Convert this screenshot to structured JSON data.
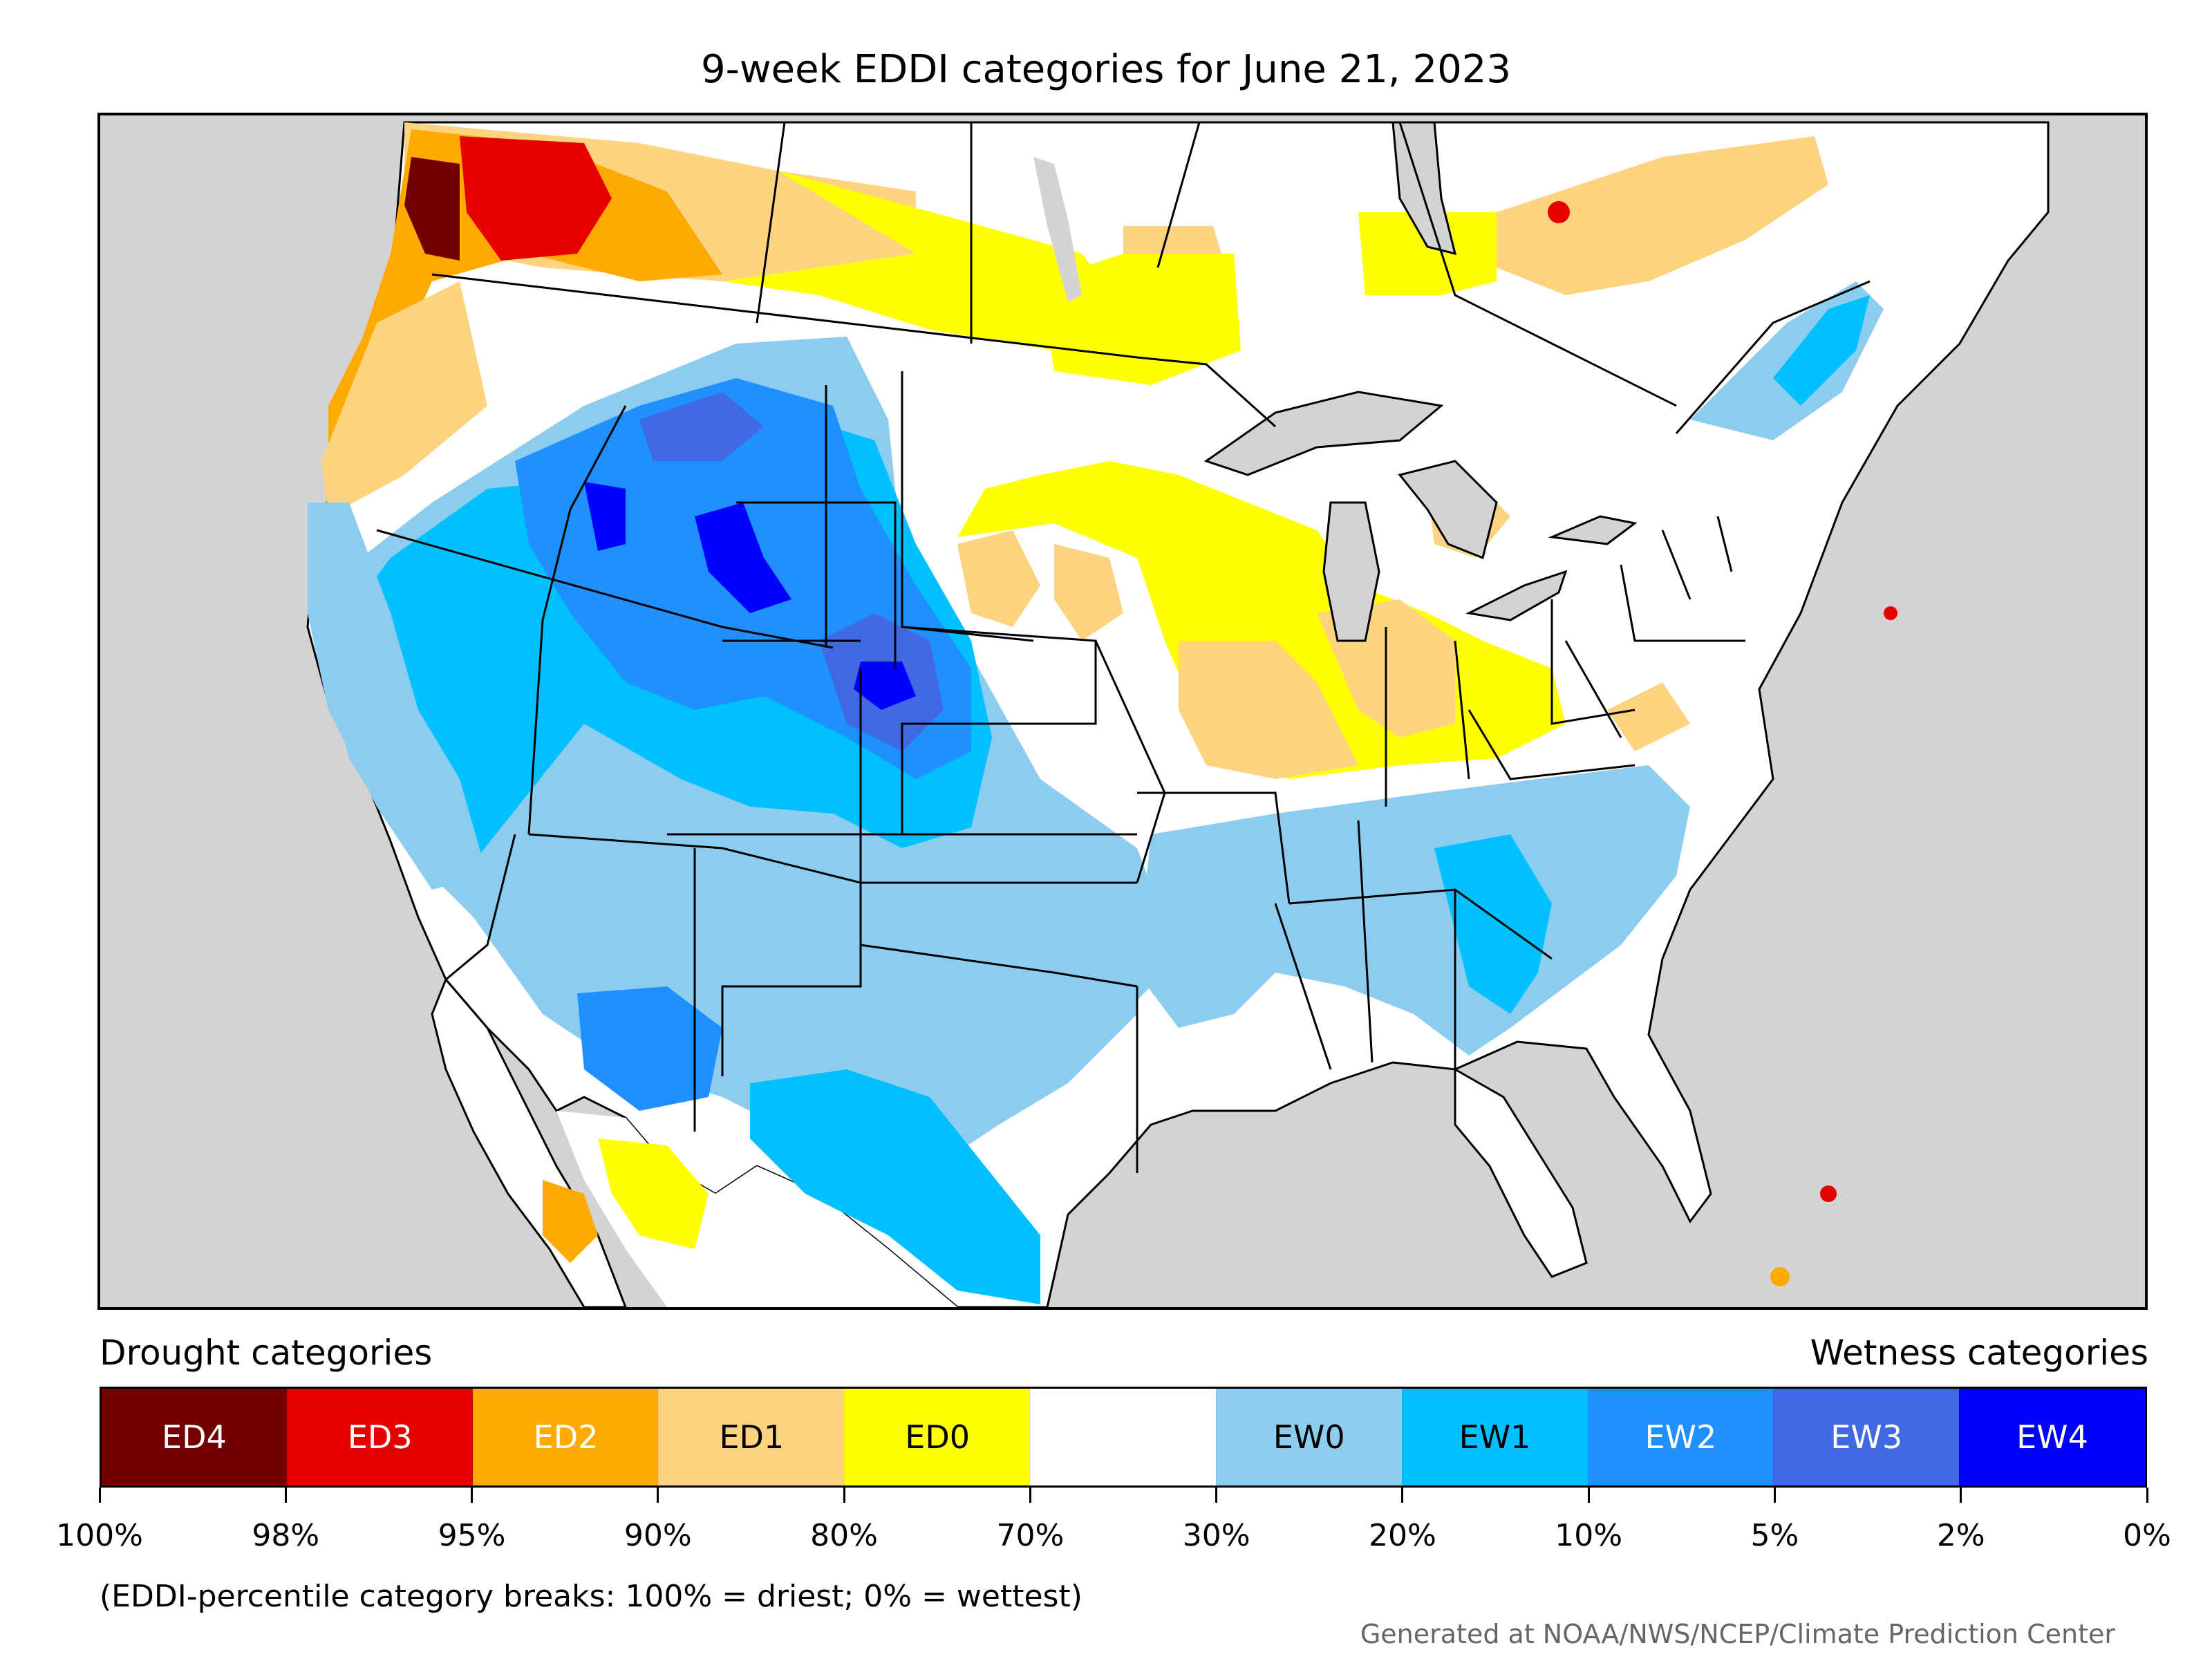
{
  "title": "9-week EDDI categories for June 21, 2023",
  "legend": {
    "drought_heading": "Drought categories",
    "wetness_heading": "Wetness categories",
    "categories": [
      {
        "label": "ED4",
        "color": "#730000",
        "text_color": "#ffffff"
      },
      {
        "label": "ED3",
        "color": "#e60000",
        "text_color": "#ffffff"
      },
      {
        "label": "ED2",
        "color": "#ffaa00",
        "text_color": "#ffffff"
      },
      {
        "label": "ED1",
        "color": "#fcd37f",
        "text_color": "#000000"
      },
      {
        "label": "ED0",
        "color": "#ffff00",
        "text_color": "#000000"
      },
      {
        "label": "",
        "color": "#ffffff",
        "text_color": "#000000"
      },
      {
        "label": "EW0",
        "color": "#8ccdef",
        "text_color": "#000000"
      },
      {
        "label": "EW1",
        "color": "#00c0ff",
        "text_color": "#000000"
      },
      {
        "label": "EW2",
        "color": "#1e90ff",
        "text_color": "#ffffff"
      },
      {
        "label": "EW3",
        "color": "#4169e1",
        "text_color": "#ffffff"
      },
      {
        "label": "EW4",
        "color": "#0000ff",
        "text_color": "#ffffff"
      }
    ],
    "breaks": [
      "100%",
      "98%",
      "95%",
      "90%",
      "80%",
      "70%",
      "30%",
      "20%",
      "10%",
      "5%",
      "2%",
      "0%"
    ]
  },
  "note": "(EDDI-percentile category breaks: 100% = driest; 0% = wettest)",
  "credit": "Generated at NOAA/NWS/NCEP/Climate Prediction Center",
  "colors": {
    "background_gray": "#d3d3d3",
    "land": "#ffffff",
    "ED4": "#730000",
    "ED3": "#e60000",
    "ED2": "#ffaa00",
    "ED1": "#fcd37f",
    "ED0": "#ffff00",
    "EW0": "#8ccdef",
    "EW1": "#00c0ff",
    "EW2": "#1e90ff",
    "EW3": "#4169e1",
    "EW4": "#0000ff"
  }
}
